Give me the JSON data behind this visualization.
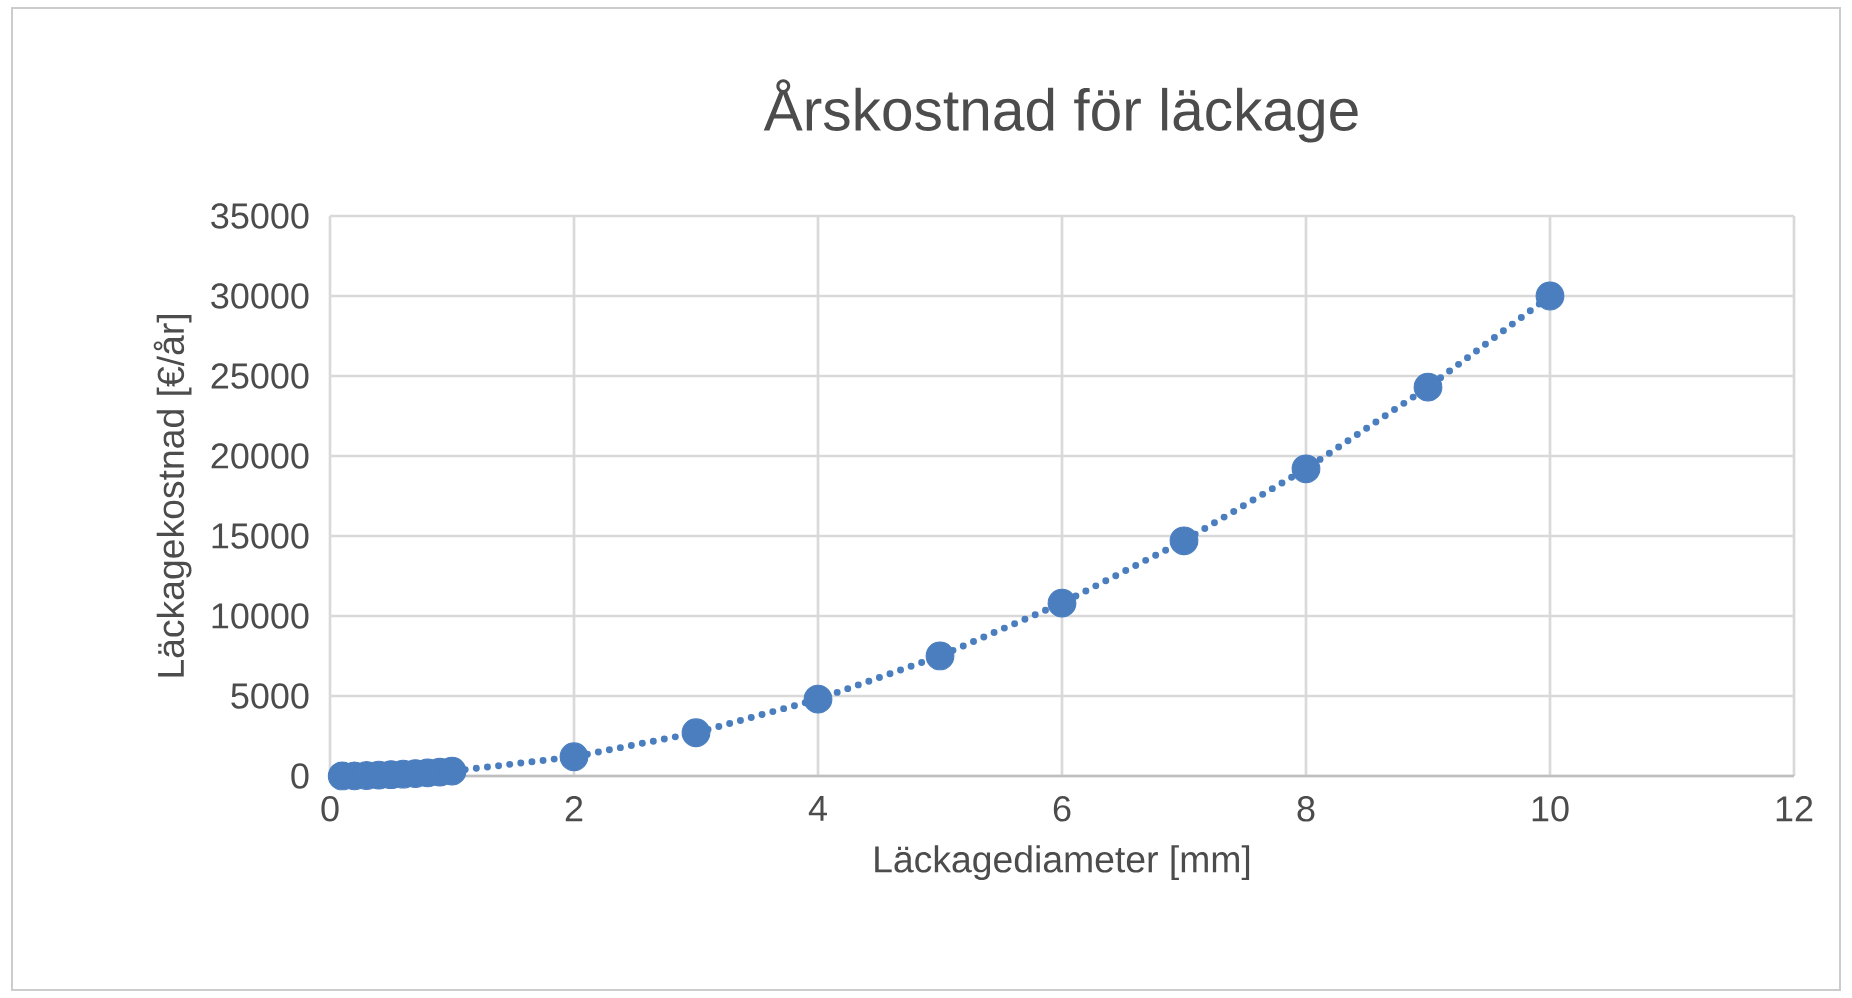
{
  "chart_data": {
    "type": "line",
    "title": "Årskostnad för läckage",
    "xlabel": "Läckagediameter [mm]",
    "ylabel": "Läckagekostnad [€/år]",
    "x": [
      0.1,
      0.2,
      0.3,
      0.4,
      0.5,
      0.6,
      0.7,
      0.8,
      0.9,
      1,
      2,
      3,
      4,
      5,
      6,
      7,
      8,
      9,
      10
    ],
    "series": [
      {
        "color": "#4a7ebf",
        "values": [
          0,
          10,
          30,
          50,
          80,
          110,
          150,
          190,
          240,
          300,
          1200,
          2700,
          4800,
          7500,
          10800,
          14700,
          19200,
          24300,
          30000
        ]
      }
    ],
    "xlim": [
      0,
      12
    ],
    "xticks": [
      0,
      2,
      4,
      6,
      8,
      10,
      12
    ],
    "ylim": [
      0,
      35000
    ],
    "yticks": [
      0,
      5000,
      10000,
      15000,
      20000,
      25000,
      30000,
      35000
    ],
    "grid": true,
    "marker": "circle",
    "line_style": "dotted"
  }
}
